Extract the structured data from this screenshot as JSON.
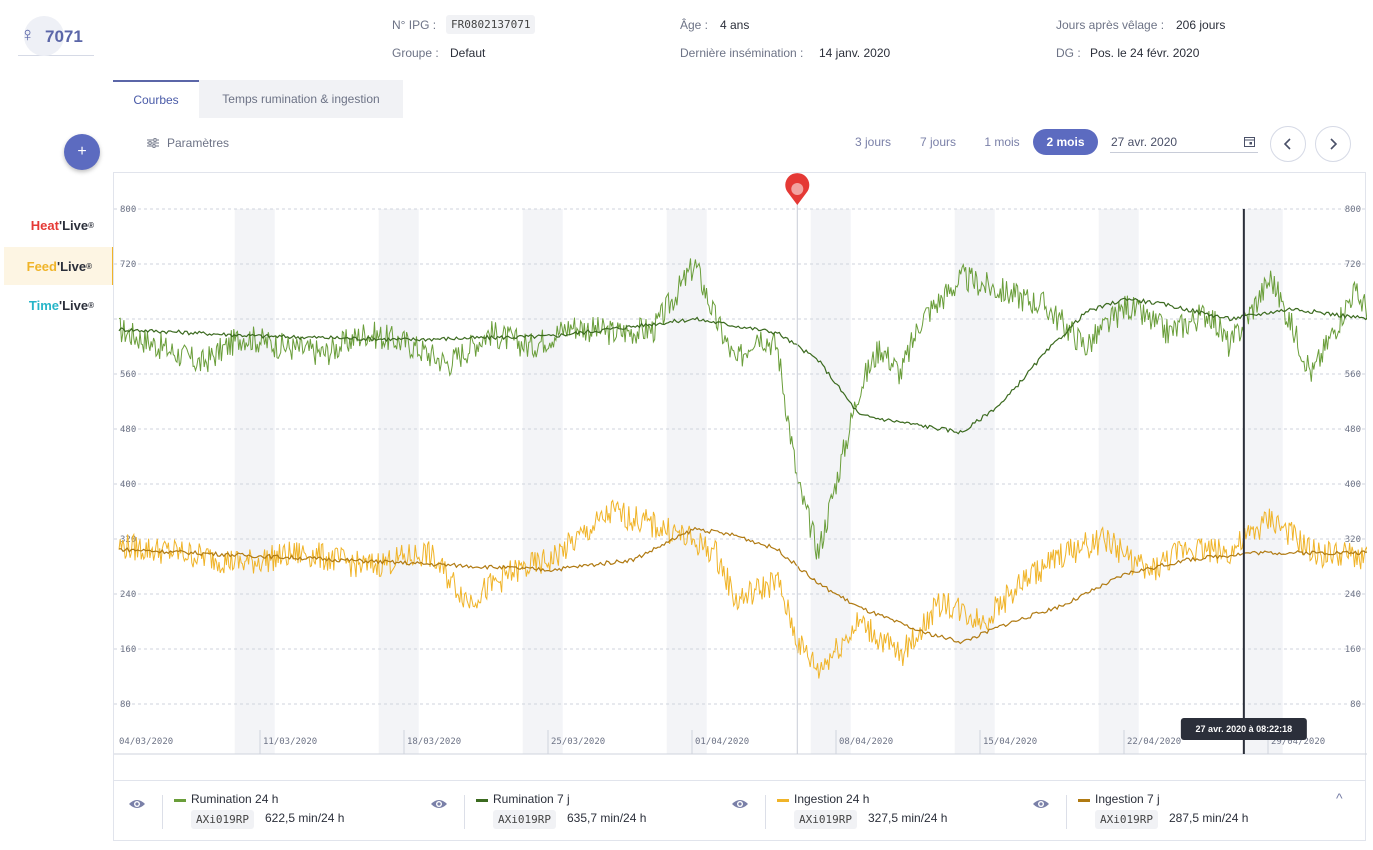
{
  "animal": {
    "sex_symbol": "♀",
    "number": "7071"
  },
  "header": {
    "ipg_label": "N° IPG :",
    "ipg_value": "FR0802137071",
    "groupe_label": "Groupe :",
    "groupe_value": "Defaut",
    "age_label": "Âge :",
    "age_value": "4 ans",
    "insem_label": "Dernière insémination :",
    "insem_value": "14 janv. 2020",
    "velage_label": "Jours après vêlage :",
    "velage_value": "206 jours",
    "dg_label": "DG :",
    "dg_value": "Pos. le 24 févr. 2020"
  },
  "tabs": [
    {
      "label": "Courbes",
      "active": true
    },
    {
      "label": "Temps rumination & ingestion",
      "active": false
    }
  ],
  "sidebar": {
    "add_label": "+",
    "heat": {
      "a": "Heat",
      "b": "'Live",
      "sup": "®",
      "color": "#e53935"
    },
    "feed": {
      "a": "Feed",
      "b": "'Live",
      "sup": "®",
      "color": "#f0b429"
    },
    "time": {
      "a": "Time",
      "b": "'Live",
      "sup": "®",
      "color": "#26b5c8"
    }
  },
  "controls": {
    "params_label": "Paramètres",
    "ranges": [
      "3 jours",
      "7 jours",
      "1 mois",
      "2 mois"
    ],
    "active_range": "2 mois",
    "date_value": "27 avr. 2020"
  },
  "chart_data": {
    "type": "line",
    "y_ticks": [
      80,
      160,
      240,
      320,
      400,
      480,
      560,
      640,
      720,
      800
    ],
    "y_tick_labels": [
      "80",
      "160",
      "240",
      "320",
      "400",
      "480",
      "560",
      "",
      "720",
      "800"
    ],
    "ylim": [
      0,
      800
    ],
    "x_labels": [
      "04/03/2020",
      "11/03/2020",
      "18/03/2020",
      "25/03/2020",
      "01/04/2020",
      "08/04/2020",
      "15/04/2020",
      "22/04/2020",
      "29/04/2020"
    ],
    "xlim": [
      "2020-03-04",
      "2020-05-05"
    ],
    "marker_date": "2020-04-05",
    "cursor_date": "2020-04-27",
    "cursor_label": "27 avr. 2020 à 08:22:18",
    "grid": true,
    "weekend_shading": true,
    "series": [
      {
        "name": "Rumination 24 h",
        "color": "#6a9e3a",
        "points": [
          [
            "2020-03-04",
            625
          ],
          [
            "2020-03-06",
            600
          ],
          [
            "2020-03-08",
            575
          ],
          [
            "2020-03-10",
            615
          ],
          [
            "2020-03-12",
            600
          ],
          [
            "2020-03-14",
            590
          ],
          [
            "2020-03-16",
            620
          ],
          [
            "2020-03-18",
            605
          ],
          [
            "2020-03-20",
            575
          ],
          [
            "2020-03-22",
            620
          ],
          [
            "2020-03-24",
            600
          ],
          [
            "2020-03-26",
            630
          ],
          [
            "2020-03-28",
            620
          ],
          [
            "2020-03-30",
            625
          ],
          [
            "2020-04-01",
            720
          ],
          [
            "2020-04-02",
            640
          ],
          [
            "2020-04-03",
            575
          ],
          [
            "2020-04-04",
            620
          ],
          [
            "2020-04-05",
            600
          ],
          [
            "2020-04-06",
            400
          ],
          [
            "2020-04-07",
            300
          ],
          [
            "2020-04-08",
            420
          ],
          [
            "2020-04-09",
            540
          ],
          [
            "2020-04-10",
            600
          ],
          [
            "2020-04-11",
            560
          ],
          [
            "2020-04-12",
            640
          ],
          [
            "2020-04-14",
            700
          ],
          [
            "2020-04-16",
            680
          ],
          [
            "2020-04-18",
            660
          ],
          [
            "2020-04-20",
            600
          ],
          [
            "2020-04-22",
            660
          ],
          [
            "2020-04-24",
            620
          ],
          [
            "2020-04-26",
            650
          ],
          [
            "2020-04-27",
            600
          ],
          [
            "2020-04-29",
            700
          ],
          [
            "2020-05-01",
            560
          ],
          [
            "2020-05-03",
            680
          ],
          [
            "2020-05-05",
            610
          ]
        ]
      },
      {
        "name": "Rumination 7 j",
        "color": "#3b6a1f",
        "points": [
          [
            "2020-03-04",
            625
          ],
          [
            "2020-03-11",
            615
          ],
          [
            "2020-03-18",
            610
          ],
          [
            "2020-03-25",
            615
          ],
          [
            "2020-04-01",
            640
          ],
          [
            "2020-04-05",
            620
          ],
          [
            "2020-04-07",
            580
          ],
          [
            "2020-04-09",
            500
          ],
          [
            "2020-04-12",
            485
          ],
          [
            "2020-04-14",
            475
          ],
          [
            "2020-04-16",
            520
          ],
          [
            "2020-04-18",
            590
          ],
          [
            "2020-04-20",
            650
          ],
          [
            "2020-04-22",
            670
          ],
          [
            "2020-04-24",
            660
          ],
          [
            "2020-04-27",
            640
          ],
          [
            "2020-04-30",
            655
          ],
          [
            "2020-05-05",
            635
          ]
        ]
      },
      {
        "name": "Ingestion 24 h",
        "color": "#f0b429",
        "points": [
          [
            "2020-03-04",
            310
          ],
          [
            "2020-03-07",
            300
          ],
          [
            "2020-03-10",
            285
          ],
          [
            "2020-03-13",
            300
          ],
          [
            "2020-03-16",
            280
          ],
          [
            "2020-03-19",
            300
          ],
          [
            "2020-03-21",
            230
          ],
          [
            "2020-03-23",
            270
          ],
          [
            "2020-03-25",
            290
          ],
          [
            "2020-03-28",
            360
          ],
          [
            "2020-03-31",
            330
          ],
          [
            "2020-04-02",
            300
          ],
          [
            "2020-04-03",
            230
          ],
          [
            "2020-04-05",
            260
          ],
          [
            "2020-04-06",
            170
          ],
          [
            "2020-04-07",
            130
          ],
          [
            "2020-04-09",
            200
          ],
          [
            "2020-04-11",
            150
          ],
          [
            "2020-04-13",
            230
          ],
          [
            "2020-04-15",
            200
          ],
          [
            "2020-04-17",
            260
          ],
          [
            "2020-04-19",
            300
          ],
          [
            "2020-04-21",
            320
          ],
          [
            "2020-04-23",
            270
          ],
          [
            "2020-04-25",
            310
          ],
          [
            "2020-04-27",
            300
          ],
          [
            "2020-04-29",
            350
          ],
          [
            "2020-05-01",
            300
          ],
          [
            "2020-05-05",
            290
          ]
        ]
      },
      {
        "name": "Ingestion 7 j",
        "color": "#b07a12",
        "points": [
          [
            "2020-03-04",
            305
          ],
          [
            "2020-03-11",
            295
          ],
          [
            "2020-03-18",
            285
          ],
          [
            "2020-03-25",
            275
          ],
          [
            "2020-03-29",
            290
          ],
          [
            "2020-04-01",
            335
          ],
          [
            "2020-04-03",
            325
          ],
          [
            "2020-04-05",
            305
          ],
          [
            "2020-04-07",
            255
          ],
          [
            "2020-04-09",
            220
          ],
          [
            "2020-04-12",
            185
          ],
          [
            "2020-04-14",
            170
          ],
          [
            "2020-04-16",
            195
          ],
          [
            "2020-04-19",
            225
          ],
          [
            "2020-04-22",
            270
          ],
          [
            "2020-04-25",
            290
          ],
          [
            "2020-04-28",
            300
          ],
          [
            "2020-05-05",
            300
          ]
        ]
      }
    ]
  },
  "legend": [
    {
      "name": "Rumination 24 h",
      "device": "AXi019RP",
      "value": "622,5 min/24 h",
      "color": "#6a9e3a"
    },
    {
      "name": "Rumination 7 j",
      "device": "AXi019RP",
      "value": "635,7 min/24 h",
      "color": "#3b6a1f"
    },
    {
      "name": "Ingestion 24 h",
      "device": "AXi019RP",
      "value": "327,5 min/24 h",
      "color": "#f0b429"
    },
    {
      "name": "Ingestion 7 j",
      "device": "AXi019RP",
      "value": "287,5 min/24 h",
      "color": "#b07a12"
    }
  ],
  "legend_collapse": "^"
}
